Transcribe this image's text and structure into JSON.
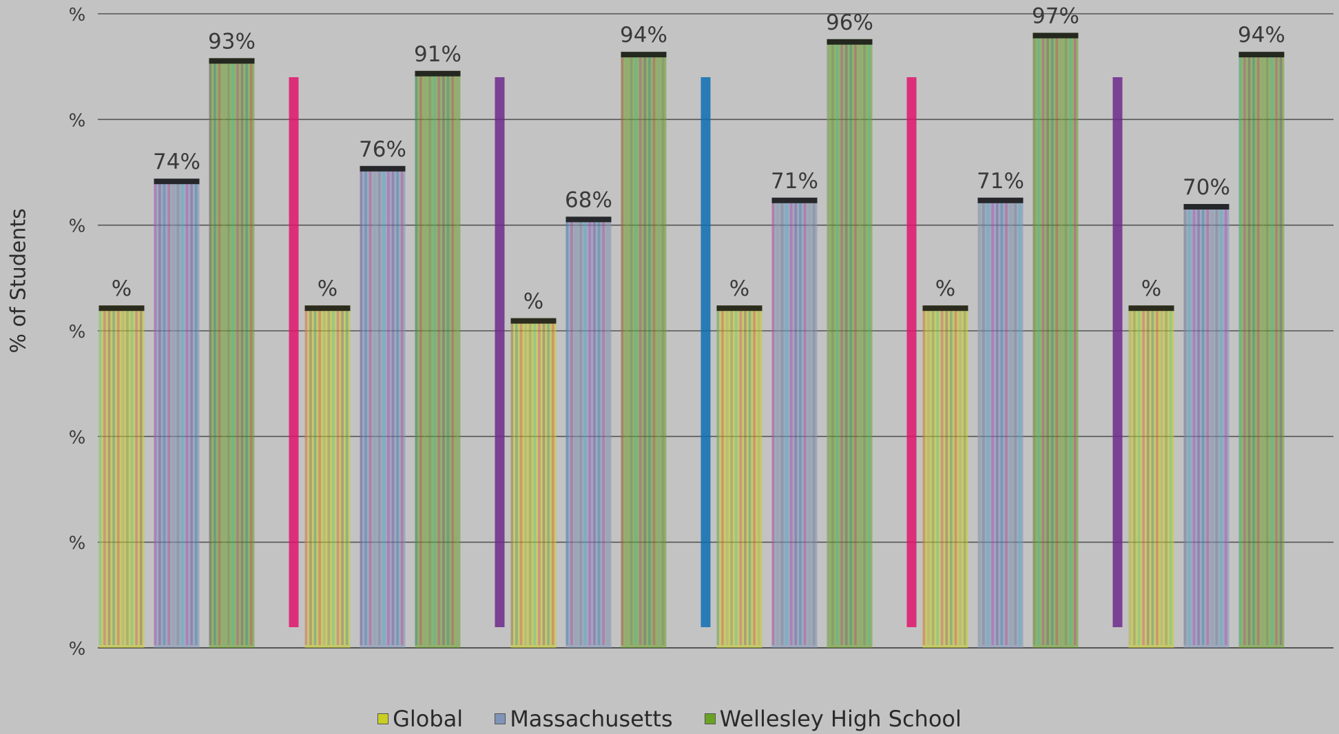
{
  "colors": {
    "background": "#c3c3c3",
    "gridline": "#555555",
    "text": "#3a3a3a",
    "global": "#c8cf22",
    "massachusetts": "#7f94b8",
    "wellesley": "#6aa323",
    "glitch_cyan": "#1fc3d1",
    "glitch_magenta": "#d613b5",
    "glitch_blue": "#0e6fb3",
    "glitch_purple": "#6f2a8c",
    "glitch_pink": "#e0156c"
  },
  "y_axis": {
    "title": "% of Students",
    "tick_labels": [
      "%",
      "%",
      "%",
      "%",
      "%",
      "%",
      "%"
    ]
  },
  "legend": {
    "items": [
      {
        "label": "Global",
        "icon": "square-icon-yellow"
      },
      {
        "label": "Massachusetts",
        "icon": "square-icon-blue"
      },
      {
        "label": "Wellesley High School",
        "icon": "square-icon-green"
      }
    ]
  },
  "chart_data": {
    "type": "bar",
    "ylabel": "% of Students",
    "ylim": [
      0,
      100
    ],
    "grid": true,
    "legend_position": "bottom",
    "groups": 6,
    "series": [
      {
        "name": "Global",
        "values": [
          null,
          null,
          null,
          null,
          null,
          null
        ],
        "labels": [
          "%",
          "%",
          "%",
          "%",
          "%",
          "%"
        ]
      },
      {
        "name": "Massachusetts",
        "values": [
          74,
          76,
          68,
          71,
          71,
          70
        ],
        "labels": [
          "74%",
          "76%",
          "68%",
          "71%",
          "71%",
          "70%"
        ]
      },
      {
        "name": "Wellesley High School",
        "values": [
          93,
          91,
          94,
          96,
          97,
          94
        ],
        "labels": [
          "93%",
          "91%",
          "94%",
          "96%",
          "97%",
          "94%"
        ]
      }
    ]
  }
}
